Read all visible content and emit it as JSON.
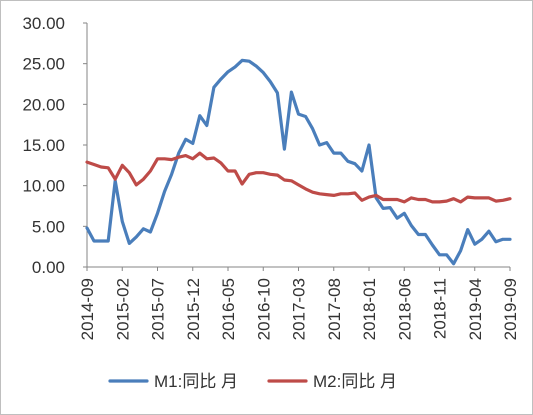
{
  "chart_data": {
    "type": "line",
    "y_tick_labels": [
      "0.00",
      "5.00",
      "10.00",
      "15.00",
      "20.00",
      "25.00",
      "30.00"
    ],
    "ylim": [
      0,
      30
    ],
    "x_tick_labels": [
      "2014-09",
      "2015-02",
      "2015-07",
      "2015-12",
      "2016-05",
      "2016-10",
      "2017-03",
      "2017-08",
      "2018-01",
      "2018-06",
      "2018-11",
      "2019-04",
      "2019-09"
    ],
    "grid": false,
    "legend_position": "bottom",
    "series": [
      {
        "name": "M1:同比 月",
        "color": "#4a7ebb",
        "values": [
          4.8,
          3.2,
          3.2,
          3.2,
          10.6,
          5.6,
          2.9,
          3.7,
          4.7,
          4.3,
          6.6,
          9.3,
          11.4,
          14.0,
          15.7,
          15.2,
          18.6,
          17.4,
          22.1,
          23.1,
          24.0,
          24.6,
          25.4,
          25.3,
          24.7,
          23.9,
          22.8,
          21.4,
          14.5,
          21.5,
          18.8,
          18.5,
          17.0,
          15.0,
          15.3,
          14.0,
          14.0,
          13.0,
          12.7,
          11.8,
          15.0,
          8.5,
          7.2,
          7.3,
          6.0,
          6.6,
          5.1,
          4.0,
          4.0,
          2.7,
          1.5,
          1.5,
          0.4,
          2.0,
          4.6,
          2.8,
          3.4,
          4.4,
          3.1,
          3.4,
          3.4
        ]
      },
      {
        "name": "M2:同比 月",
        "color": "#be4b48",
        "values": [
          12.9,
          12.6,
          12.3,
          12.2,
          10.8,
          12.5,
          11.6,
          10.1,
          10.8,
          11.8,
          13.3,
          13.3,
          13.2,
          13.5,
          13.7,
          13.3,
          14.0,
          13.3,
          13.4,
          12.8,
          11.8,
          11.8,
          10.2,
          11.4,
          11.6,
          11.6,
          11.4,
          11.3,
          10.7,
          10.6,
          10.1,
          9.6,
          9.2,
          9.0,
          8.9,
          8.8,
          9.0,
          9.0,
          9.1,
          8.2,
          8.6,
          8.8,
          8.3,
          8.3,
          8.3,
          8.0,
          8.5,
          8.3,
          8.3,
          8.0,
          8.0,
          8.1,
          8.4,
          8.0,
          8.6,
          8.5,
          8.5,
          8.5,
          8.1,
          8.2,
          8.4
        ]
      }
    ]
  }
}
